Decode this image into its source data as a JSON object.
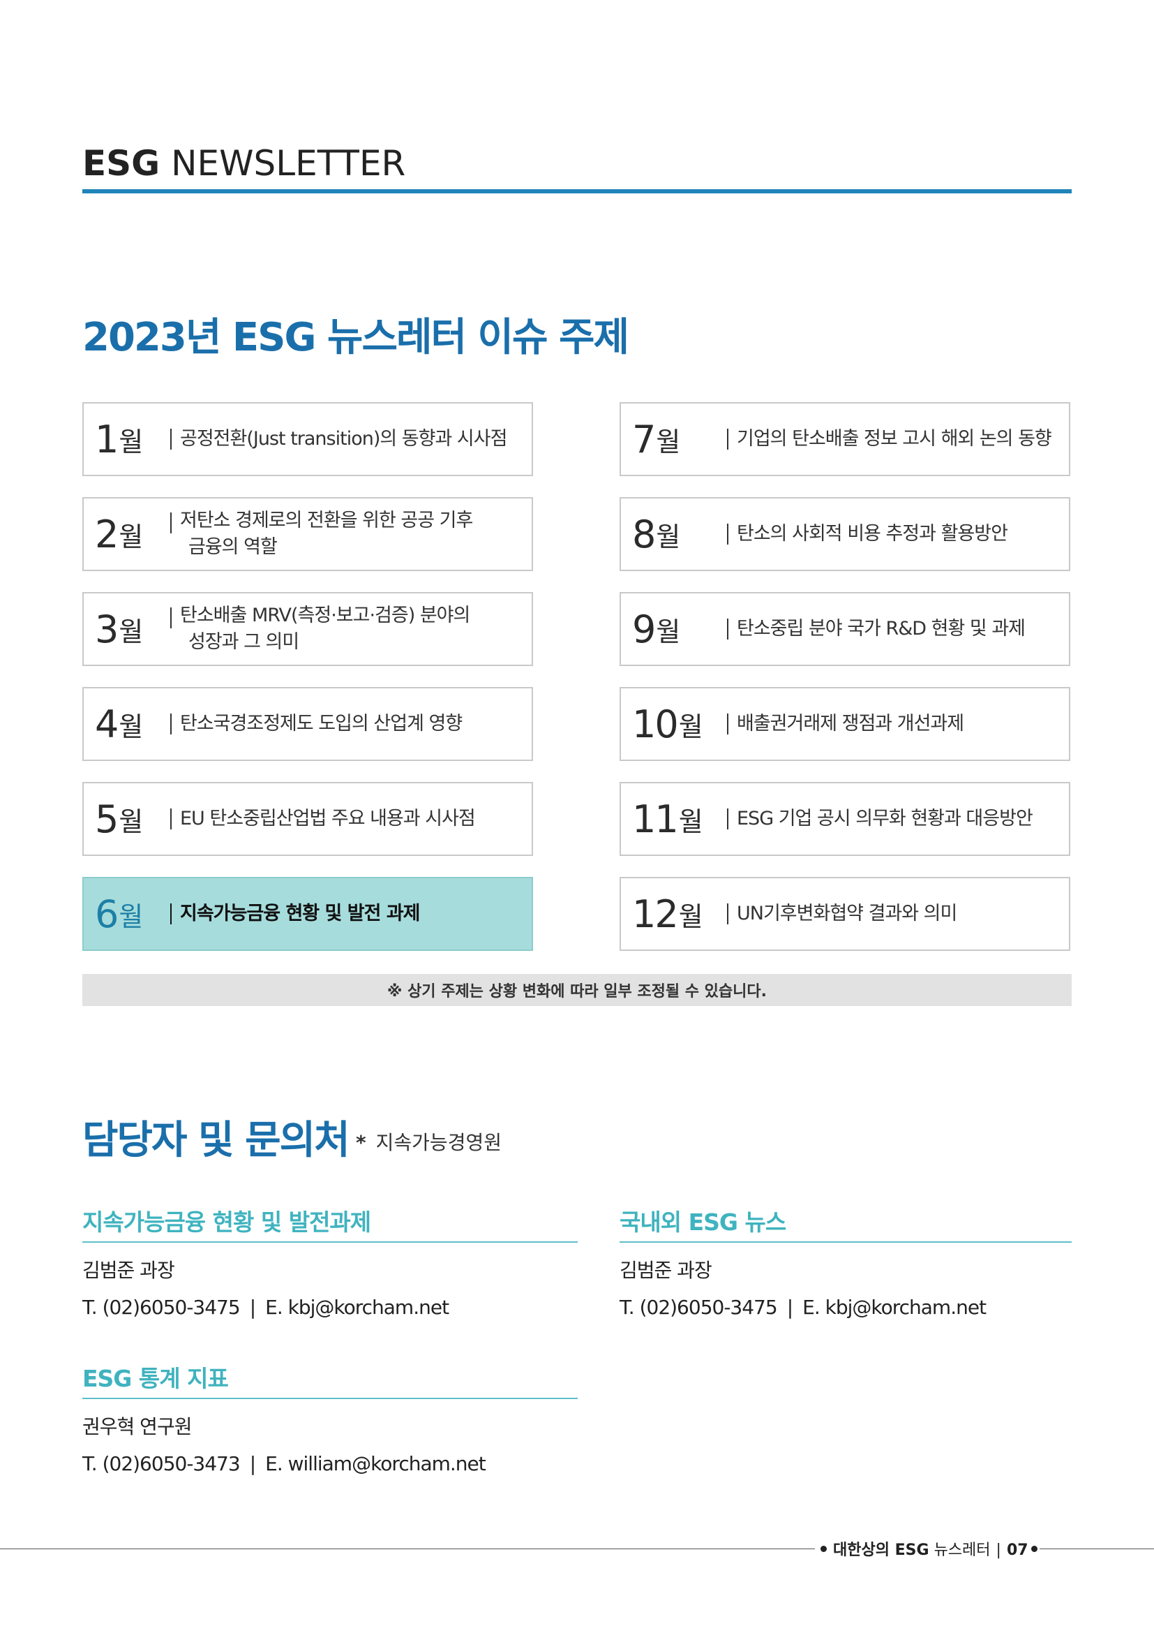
{
  "header": {
    "brand_bold": "ESG",
    "brand_light": "NEWSLETTER"
  },
  "topics_section": {
    "title": "2023년 ESG 뉴스레터 이슈 주제",
    "unit": "월",
    "items": [
      {
        "month": "1",
        "lines": [
          "공정전환(Just transition)의 동향과 시사점"
        ]
      },
      {
        "month": "2",
        "lines": [
          "저탄소 경제로의 전환을 위한 공공 기후",
          "금융의 역할"
        ]
      },
      {
        "month": "3",
        "lines": [
          "탄소배출 MRV(측정·보고·검증) 분야의",
          "성장과 그 의미"
        ]
      },
      {
        "month": "4",
        "lines": [
          "탄소국경조정제도 도입의 산업계 영향"
        ]
      },
      {
        "month": "5",
        "lines": [
          "EU 탄소중립산업법 주요 내용과 시사점"
        ]
      },
      {
        "month": "6",
        "lines": [
          "지속가능금융 현황 및 발전 과제"
        ],
        "active": true
      },
      {
        "month": "7",
        "lines": [
          "기업의 탄소배출 정보 고시 해외 논의 동향"
        ]
      },
      {
        "month": "8",
        "lines": [
          "탄소의 사회적 비용 추정과 활용방안"
        ]
      },
      {
        "month": "9",
        "lines": [
          "탄소중립 분야 국가 R&D 현황 및 과제"
        ]
      },
      {
        "month": "10",
        "lines": [
          "배출권거래제 쟁점과 개선과제"
        ]
      },
      {
        "month": "11",
        "lines": [
          "ESG 기업 공시 의무화 현황과 대응방안"
        ]
      },
      {
        "month": "12",
        "lines": [
          "UN기후변화협약 결과와 의미"
        ]
      }
    ],
    "note": "※ 상기 주제는 상황 변화에 따라 일부 조정될 수 있습니다."
  },
  "contact_section": {
    "title": "담당자 및 문의처",
    "org_marker": "*",
    "org": "지속가능경영원",
    "blocks": [
      {
        "heading": "지속가능금융 현황 및 발전과제",
        "name": "김범준 과장",
        "phone": "T. (02)6050-3475",
        "sep": "|",
        "email": "E. kbj@korcham.net"
      },
      {
        "heading": "국내외 ESG 뉴스",
        "name": "김범준 과장",
        "phone": "T. (02)6050-3475",
        "sep": "|",
        "email": "E. kbj@korcham.net"
      },
      {
        "heading": "ESG 통계 지표",
        "name": "권우혁 연구원",
        "phone": "T. (02)6050-3473",
        "sep": "|",
        "email": "E. william@korcham.net"
      }
    ]
  },
  "footer": {
    "publisher": "대한상의 ESG",
    "pub_suffix": "뉴스레터",
    "sep": "|",
    "page": "07"
  }
}
